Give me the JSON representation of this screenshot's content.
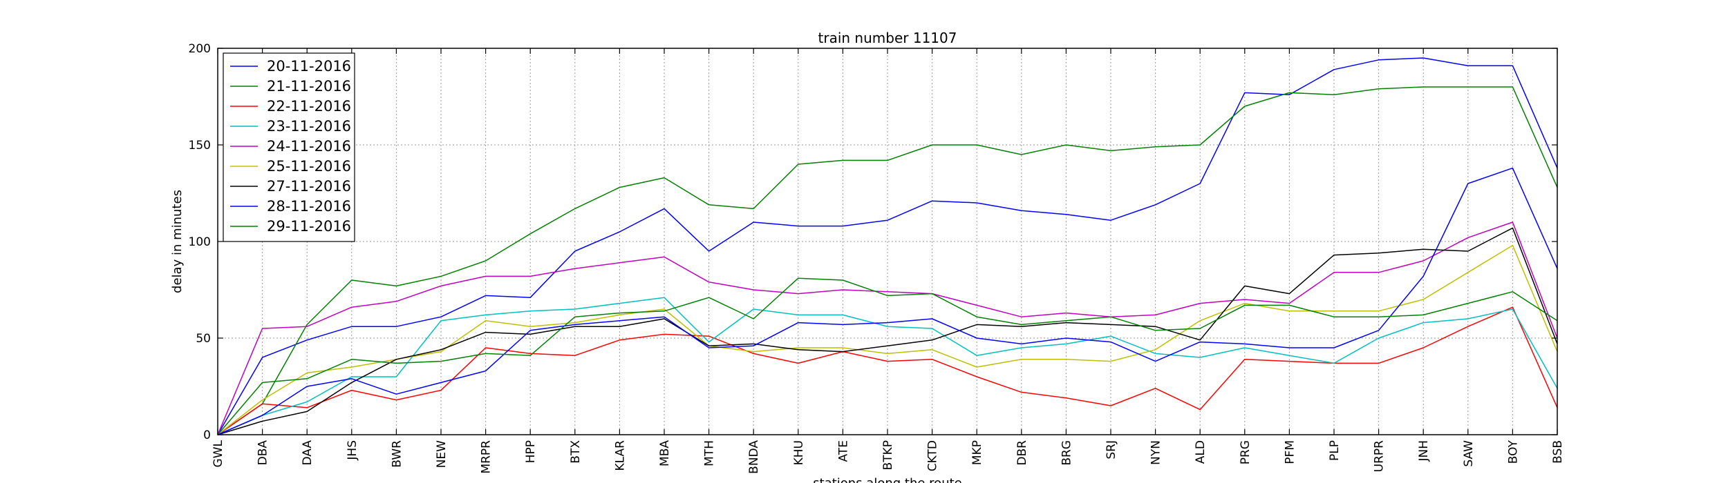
{
  "chart_data": {
    "type": "line",
    "title": "train number 11107",
    "xlabel": "stations along the route",
    "ylabel": "delay in minutes",
    "ylim": [
      0,
      200
    ],
    "yticks": [
      0,
      50,
      100,
      150,
      200
    ],
    "grid": true,
    "legend_position": "top-left",
    "categories": [
      "GWL",
      "DBA",
      "DAA",
      "JHS",
      "BWR",
      "NEW",
      "MRPR",
      "HPP",
      "BTX",
      "KLAR",
      "MBA",
      "MTH",
      "BNDA",
      "KHU",
      "ATE",
      "BTKP",
      "CKTD",
      "MKP",
      "DBR",
      "BRG",
      "SRJ",
      "NYN",
      "ALD",
      "PRG",
      "PFM",
      "PLP",
      "URPR",
      "JNH",
      "SAW",
      "BOY",
      "BSB"
    ],
    "series": [
      {
        "name": "20-11-2016",
        "color": "#0000ff",
        "values": [
          0,
          40,
          49,
          56,
          56,
          61,
          72,
          71,
          95,
          105,
          117,
          95,
          110,
          108,
          108,
          111,
          121,
          120,
          116,
          114,
          111,
          119,
          130,
          177,
          176,
          189,
          194,
          195,
          191,
          191,
          138
        ]
      },
      {
        "name": "21-11-2016",
        "color": "#008000",
        "values": [
          0,
          16,
          57,
          80,
          77,
          82,
          90,
          104,
          117,
          128,
          133,
          119,
          117,
          140,
          142,
          142,
          150,
          150,
          145,
          150,
          147,
          149,
          150,
          170,
          177,
          176,
          179,
          180,
          180,
          180,
          128
        ]
      },
      {
        "name": "22-11-2016",
        "color": "#ff0000",
        "values": [
          0,
          16,
          14,
          23,
          18,
          23,
          45,
          42,
          41,
          49,
          52,
          51,
          42,
          37,
          43,
          38,
          39,
          30,
          22,
          19,
          15,
          24,
          13,
          39,
          38,
          37,
          37,
          45,
          56,
          66,
          14
        ]
      },
      {
        "name": "23-11-2016",
        "color": "#00bfbf",
        "values": [
          0,
          10,
          17,
          30,
          30,
          59,
          62,
          64,
          65,
          68,
          71,
          48,
          65,
          62,
          62,
          56,
          55,
          41,
          45,
          47,
          51,
          42,
          40,
          45,
          41,
          37,
          50,
          58,
          60,
          65,
          24
        ]
      },
      {
        "name": "24-11-2016",
        "color": "#bf00bf",
        "values": [
          0,
          55,
          56,
          66,
          69,
          77,
          82,
          82,
          86,
          89,
          92,
          79,
          75,
          73,
          75,
          74,
          73,
          67,
          61,
          63,
          61,
          62,
          68,
          70,
          68,
          84,
          84,
          90,
          102,
          110,
          50
        ]
      },
      {
        "name": "25-11-2016",
        "color": "#bfbf00",
        "values": [
          0,
          18,
          32,
          35,
          39,
          43,
          59,
          56,
          58,
          62,
          65,
          46,
          43,
          45,
          45,
          42,
          44,
          35,
          39,
          39,
          38,
          44,
          59,
          68,
          64,
          64,
          64,
          70,
          84,
          98,
          43
        ]
      },
      {
        "name": "27-11-2016",
        "color": "#000000",
        "values": [
          0,
          7,
          12,
          27,
          39,
          44,
          53,
          52,
          56,
          56,
          60,
          46,
          47,
          44,
          43,
          46,
          49,
          57,
          56,
          58,
          57,
          56,
          49,
          77,
          73,
          93,
          94,
          96,
          95,
          107,
          47
        ]
      },
      {
        "name": "28-11-2016",
        "color": "#0000ff",
        "values": [
          0,
          10,
          25,
          29,
          21,
          27,
          33,
          54,
          57,
          59,
          61,
          45,
          46,
          58,
          57,
          58,
          60,
          50,
          47,
          50,
          48,
          38,
          48,
          47,
          45,
          45,
          54,
          82,
          130,
          138,
          86
        ]
      },
      {
        "name": "29-11-2016",
        "color": "#008000",
        "values": [
          0,
          27,
          29,
          39,
          37,
          38,
          42,
          41,
          61,
          63,
          64,
          71,
          60,
          81,
          80,
          72,
          73,
          61,
          57,
          59,
          61,
          54,
          55,
          67,
          67,
          61,
          61,
          62,
          68,
          74,
          59
        ]
      }
    ]
  }
}
